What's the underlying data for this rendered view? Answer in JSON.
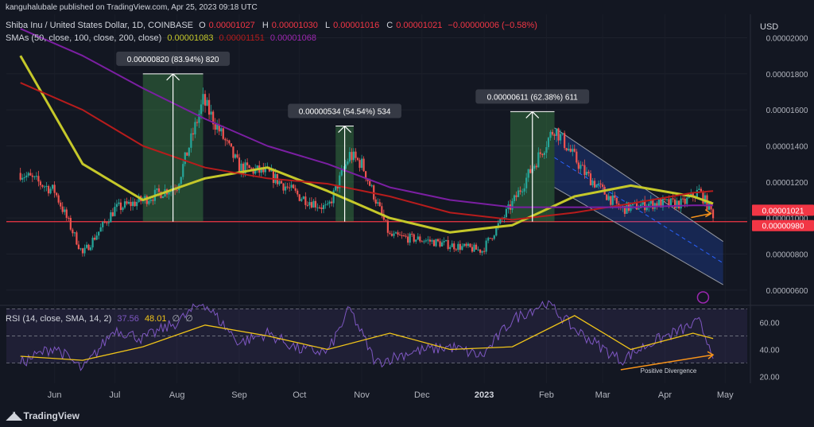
{
  "header": {
    "published": "kanguhalubale published on TradingView.com, Apr 25, 2023 09:18 UTC",
    "symbol": "Shiba Inu / United States Dollar, 1D, COINBASE",
    "ohlc": {
      "o_label": "O",
      "o": "0.00001027",
      "h_label": "H",
      "h": "0.00001030",
      "l_label": "L",
      "l": "0.00001016",
      "c_label": "C",
      "c": "0.00001021",
      "change": "−0.00000006 (−0.58%)"
    },
    "sma_label": "SMAs (50, close, 100, close, 200, close)",
    "sma_values": [
      "0.00001083",
      "0.00001151",
      "0.00001068"
    ],
    "rsi_label": "RSI (14, close, SMA, 14, 2)",
    "rsi_values": [
      "37.56",
      "48.01",
      "∅",
      "∅"
    ]
  },
  "currency": "USD",
  "footer": {
    "brand": "TradingView"
  },
  "colors": {
    "background": "#131722",
    "up": "#26a69a",
    "down": "#ef5350",
    "sma50": "#c5c82a",
    "sma100": "#b71c1c",
    "sma200": "#7b1fa2",
    "support": "#f23645",
    "rsi": "#7e57c2",
    "rsi_sma": "#f0c419",
    "channel": "#2962ff",
    "arrow": "#f7931a"
  },
  "chart_data": [
    {
      "type": "line",
      "title": "Shiba Inu / United States Dollar, 1D, COINBASE",
      "ylabel": "USD",
      "ylim": [
        5.7e-06,
        2.2e-06
      ],
      "y_ticks": [
        "0.00002000",
        "0.00001800",
        "0.00001600",
        "0.00001400",
        "0.00001200",
        "0.00001000",
        "0.00000800",
        "0.00000600"
      ],
      "x_ticks": [
        "Jun",
        "Jul",
        "Aug",
        "Sep",
        "Oct",
        "Nov",
        "Dec",
        "2023",
        "Feb",
        "Mar",
        "Apr",
        "May"
      ],
      "price_labels": [
        {
          "value": "0.00001021",
          "color": "#f23645"
        },
        {
          "value": "0.00000980",
          "color": "#f23645"
        }
      ],
      "support_level": 9.8e-06,
      "series": [
        {
          "name": "Price",
          "x": [
            "2022-05-15",
            "2022-06-01",
            "2022-06-15",
            "2022-07-01",
            "2022-07-15",
            "2022-08-01",
            "2022-08-14",
            "2022-09-01",
            "2022-09-15",
            "2022-10-01",
            "2022-10-15",
            "2022-10-26",
            "2022-11-01",
            "2022-11-15",
            "2022-12-01",
            "2022-12-15",
            "2022-12-31",
            "2023-01-15",
            "2023-02-05",
            "2023-02-20",
            "2023-03-10",
            "2023-03-25",
            "2023-04-10",
            "2023-04-18",
            "2023-04-25"
          ],
          "values": [
            1.25e-05,
            1.15e-05,
            8e-06,
            1.05e-05,
            1.1e-05,
            1.18e-05,
            1.65e-05,
            1.28e-05,
            1.25e-05,
            1.12e-05,
            1.05e-05,
            1.35e-05,
            1.3e-05,
            9e-06,
            8.8e-06,
            8.5e-06,
            8.2e-06,
            1.08e-05,
            1.5e-05,
            1.25e-05,
            1.05e-05,
            1.08e-05,
            1.08e-05,
            1.15e-05,
            1.02e-05
          ]
        },
        {
          "name": "SMA 50",
          "x": [
            "2022-05-15",
            "2022-06-15",
            "2022-07-15",
            "2022-08-15",
            "2022-09-15",
            "2022-10-15",
            "2022-11-15",
            "2022-12-15",
            "2023-01-15",
            "2023-02-15",
            "2023-03-15",
            "2023-04-15",
            "2023-04-25"
          ],
          "values": [
            1.9e-05,
            1.3e-05,
            1.1e-05,
            1.22e-05,
            1.28e-05,
            1.15e-05,
            1e-05,
            9.2e-06,
            9.6e-06,
            1.12e-05,
            1.18e-05,
            1.12e-05,
            1.08e-05
          ]
        },
        {
          "name": "SMA 100",
          "x": [
            "2022-05-15",
            "2022-06-15",
            "2022-07-15",
            "2022-08-15",
            "2022-09-15",
            "2022-10-15",
            "2022-11-15",
            "2022-12-15",
            "2023-01-15",
            "2023-02-15",
            "2023-03-15",
            "2023-04-15",
            "2023-04-25"
          ],
          "values": [
            1.75e-05,
            1.6e-05,
            1.4e-05,
            1.28e-05,
            1.22e-05,
            1.19e-05,
            1.12e-05,
            1.03e-05,
            9.9e-06,
            1.03e-05,
            1.08e-05,
            1.14e-05,
            1.15e-05
          ]
        },
        {
          "name": "SMA 200",
          "x": [
            "2022-05-15",
            "2022-06-15",
            "2022-07-15",
            "2022-08-15",
            "2022-09-15",
            "2022-10-15",
            "2022-11-15",
            "2022-12-15",
            "2023-01-15",
            "2023-02-15",
            "2023-03-15",
            "2023-04-15",
            "2023-04-25"
          ],
          "values": [
            2.05e-05,
            1.9e-05,
            1.72e-05,
            1.55e-05,
            1.4e-05,
            1.3e-05,
            1.17e-05,
            1.1e-05,
            1.06e-05,
            1.06e-05,
            1.06e-05,
            1.07e-05,
            1.07e-05
          ]
        }
      ],
      "annotations": [
        {
          "label": "0.00000820 (83.94%) 820",
          "from": 9.8e-06,
          "to": 1.8e-05,
          "start": "2022-07-15",
          "end": "2022-08-14"
        },
        {
          "label": "0.00000534 (54.54%) 534",
          "from": 9.8e-06,
          "to": 1.51e-05,
          "start": "2022-10-19",
          "end": "2022-10-28"
        },
        {
          "label": "0.00000611 (62.38%) 611",
          "from": 9.8e-06,
          "to": 1.59e-05,
          "start": "2023-01-14",
          "end": "2023-02-05"
        }
      ]
    },
    {
      "type": "line",
      "title": "RSI (14, close, SMA, 14, 2)",
      "ylim": [
        15,
        72
      ],
      "y_ticks": [
        "60.00",
        "40.00",
        "20.00"
      ],
      "bands": [
        30,
        70
      ],
      "series": [
        {
          "name": "RSI",
          "x": [
            "2022-05-15",
            "2022-06-01",
            "2022-06-15",
            "2022-07-01",
            "2022-07-15",
            "2022-08-01",
            "2022-08-14",
            "2022-09-01",
            "2022-09-15",
            "2022-10-01",
            "2022-10-15",
            "2022-10-26",
            "2022-11-08",
            "2022-11-25",
            "2022-12-15",
            "2022-12-31",
            "2023-01-15",
            "2023-02-01",
            "2023-02-15",
            "2023-03-10",
            "2023-03-25",
            "2023-04-10",
            "2023-04-18",
            "2023-04-25"
          ],
          "values": [
            30,
            42,
            25,
            55,
            48,
            60,
            75,
            45,
            52,
            40,
            38,
            70,
            30,
            38,
            42,
            35,
            62,
            75,
            55,
            32,
            45,
            55,
            60,
            37.56
          ]
        },
        {
          "name": "RSI SMA",
          "x": [
            "2022-05-15",
            "2022-06-15",
            "2022-07-15",
            "2022-08-15",
            "2022-09-15",
            "2022-10-15",
            "2022-11-15",
            "2022-12-15",
            "2023-01-15",
            "2023-02-15",
            "2023-03-15",
            "2023-04-15",
            "2023-04-25"
          ],
          "values": [
            35,
            32,
            42,
            58,
            50,
            40,
            52,
            40,
            42,
            65,
            40,
            52,
            48.01
          ]
        }
      ],
      "annotations": [
        {
          "label": "Positive Divergence",
          "from": "2023-03-10",
          "to": "2023-04-25"
        }
      ]
    }
  ]
}
